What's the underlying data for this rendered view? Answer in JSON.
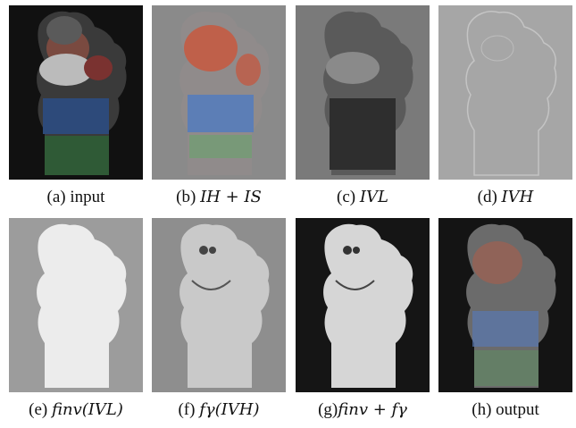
{
  "figure": {
    "panels": [
      {
        "id": "a",
        "label": "(a) input",
        "math": ""
      },
      {
        "id": "b",
        "label": "(b) ",
        "math": "IH + IS"
      },
      {
        "id": "c",
        "label": "(c) ",
        "math": "IVL"
      },
      {
        "id": "d",
        "label": "(d) ",
        "math": "IVH"
      },
      {
        "id": "e",
        "label": "(e) ",
        "math": "finv(IVL)"
      },
      {
        "id": "f",
        "label": "(f) ",
        "math": "fγ(IVH)"
      },
      {
        "id": "g",
        "label": "(g)",
        "math": "finv + fγ"
      },
      {
        "id": "h",
        "label": "(h) output",
        "math": ""
      }
    ]
  }
}
